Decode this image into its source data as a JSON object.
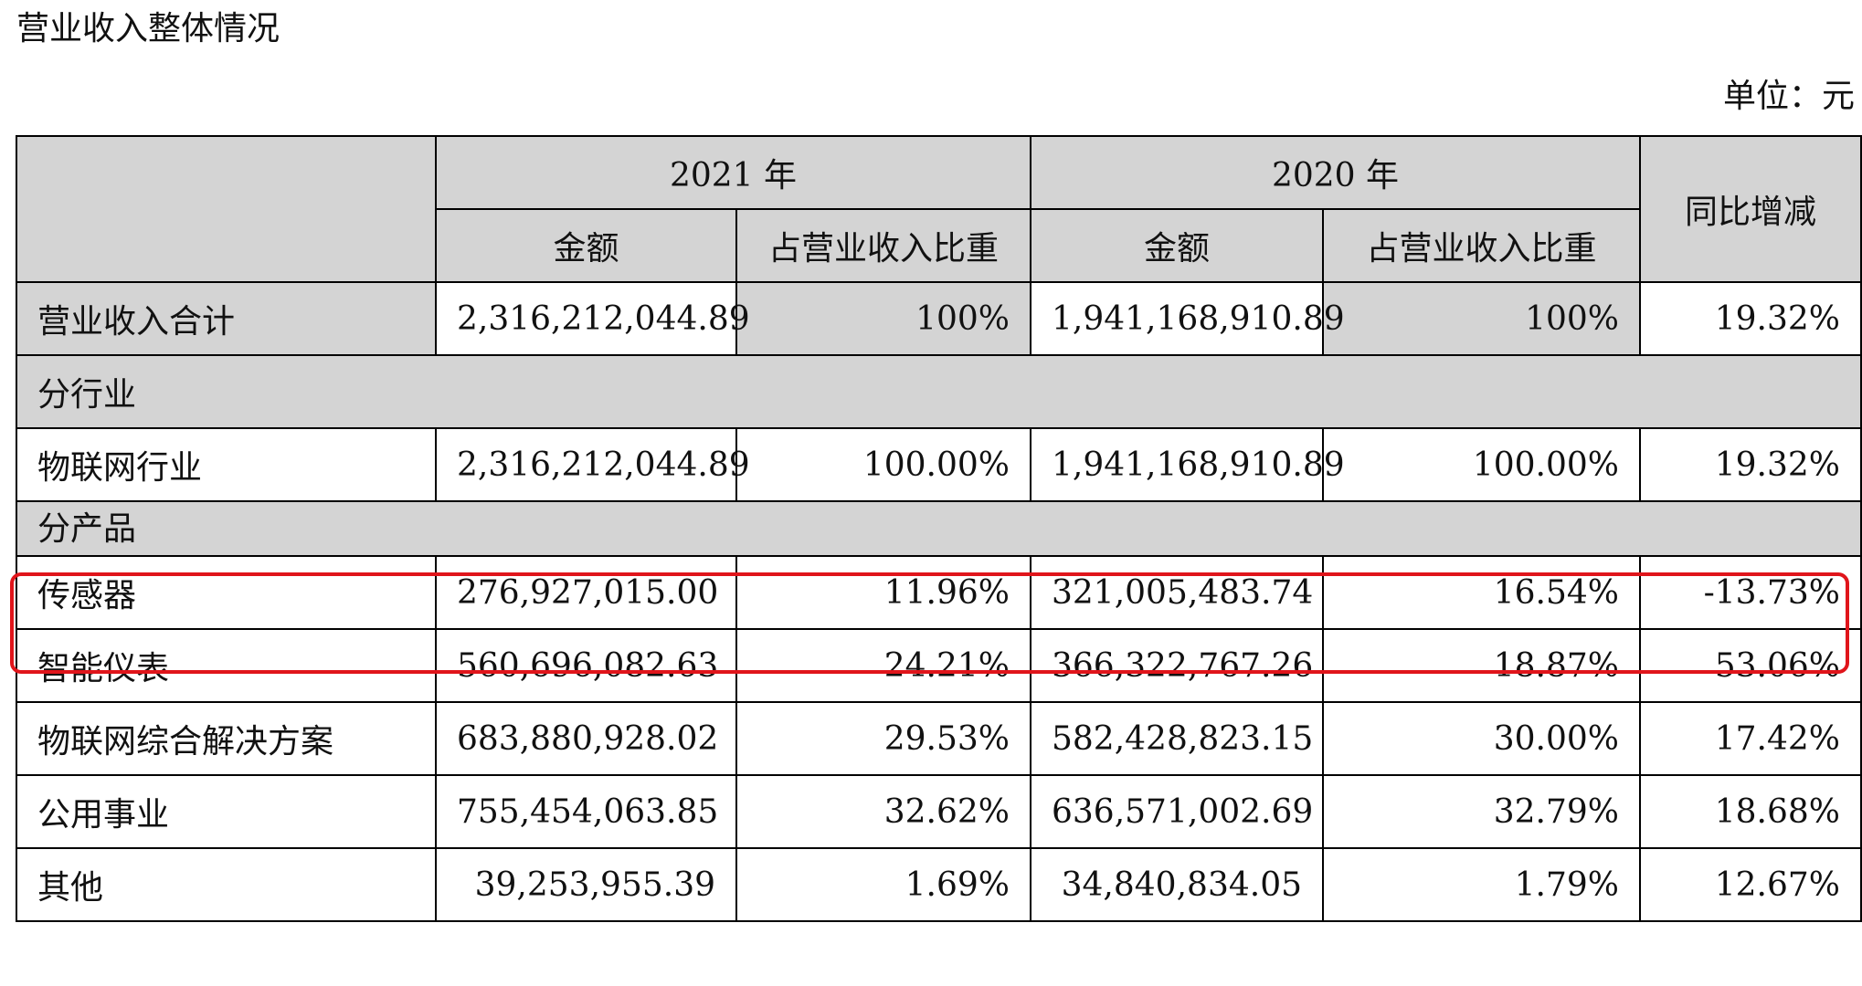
{
  "doc": {
    "title": "营业收入整体情况",
    "unit": "单位：元"
  },
  "table": {
    "header": {
      "year2021": "2021 年",
      "year2020": "2020 年",
      "yoy": "同比增减",
      "amount_2021": "金额",
      "ratio_2021": "占营业收入比重",
      "amount_2020": "金额",
      "ratio_2020": "占营业收入比重"
    },
    "total": {
      "label": "营业收入合计",
      "amount_2021": "2,316,212,044.89",
      "ratio_2021": "100%",
      "amount_2020": "1,941,168,910.89",
      "ratio_2020": "100%",
      "yoy": "19.32%"
    },
    "section_industry": "分行业",
    "industry_rows": [
      {
        "label": "物联网行业",
        "amount_2021": "2,316,212,044.89",
        "ratio_2021": "100.00%",
        "amount_2020": "1,941,168,910.89",
        "ratio_2020": "100.00%",
        "yoy": "19.32%"
      }
    ],
    "section_product": "分产品",
    "product_rows": [
      {
        "label": "传感器",
        "amount_2021": "276,927,015.00",
        "ratio_2021": "11.96%",
        "amount_2020": "321,005,483.74",
        "ratio_2020": "16.54%",
        "yoy": "-13.73%"
      },
      {
        "label": "智能仪表",
        "amount_2021": "560,696,082.63",
        "ratio_2021": "24.21%",
        "amount_2020": "366,322,767.26",
        "ratio_2020": "18.87%",
        "yoy": "53.06%"
      },
      {
        "label": "物联网综合解决方案",
        "amount_2021": "683,880,928.02",
        "ratio_2021": "29.53%",
        "amount_2020": "582,428,823.15",
        "ratio_2020": "30.00%",
        "yoy": "17.42%"
      },
      {
        "label": "公用事业",
        "amount_2021": "755,454,063.85",
        "ratio_2021": "32.62%",
        "amount_2020": "636,571,002.69",
        "ratio_2020": "32.79%",
        "yoy": "18.68%"
      },
      {
        "label": "其他",
        "amount_2021": "39,253,955.39",
        "ratio_2021": "1.69%",
        "amount_2020": "34,840,834.05",
        "ratio_2020": "1.79%",
        "yoy": "12.67%"
      }
    ]
  },
  "colors": {
    "header_fill": "#d4d4d4",
    "highlight_border": "#e0151b"
  }
}
